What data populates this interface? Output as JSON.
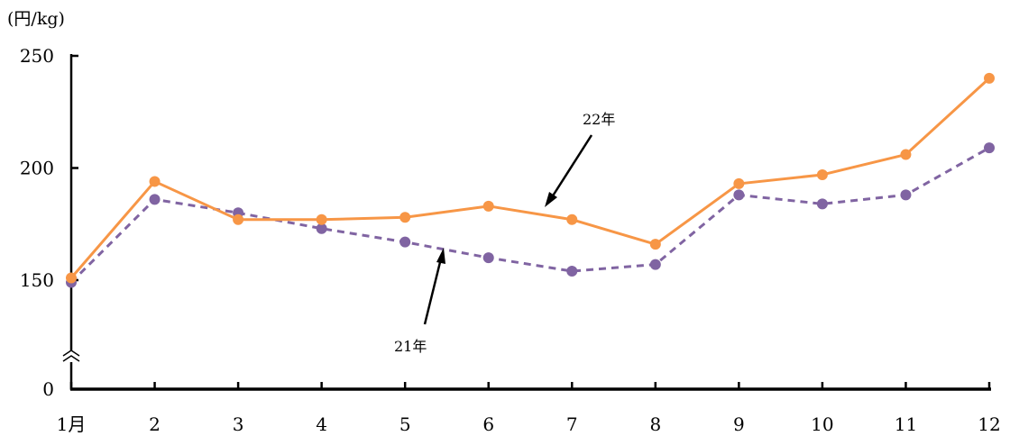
{
  "chart_data": {
    "type": "line",
    "title": "",
    "ylabel": "(円/kg)",
    "xlabel": "",
    "categories": [
      "1月",
      "2",
      "3",
      "4",
      "5",
      "6",
      "7",
      "8",
      "9",
      "10",
      "11",
      "12"
    ],
    "yticks": [
      "0",
      "150",
      "200",
      "250"
    ],
    "ylim": [
      150,
      250
    ],
    "axis_break": true,
    "grid": false,
    "legend": "inline-annotations",
    "series": [
      {
        "name": "22年",
        "color": "#f79646",
        "style": "solid",
        "values": [
          151,
          194,
          177,
          177,
          178,
          183,
          177,
          166,
          193,
          197,
          206,
          240
        ]
      },
      {
        "name": "21年",
        "color": "#8064a2",
        "style": "dashed",
        "values": [
          149,
          186,
          180,
          173,
          167,
          160,
          154,
          157,
          188,
          184,
          188,
          209
        ]
      }
    ]
  }
}
